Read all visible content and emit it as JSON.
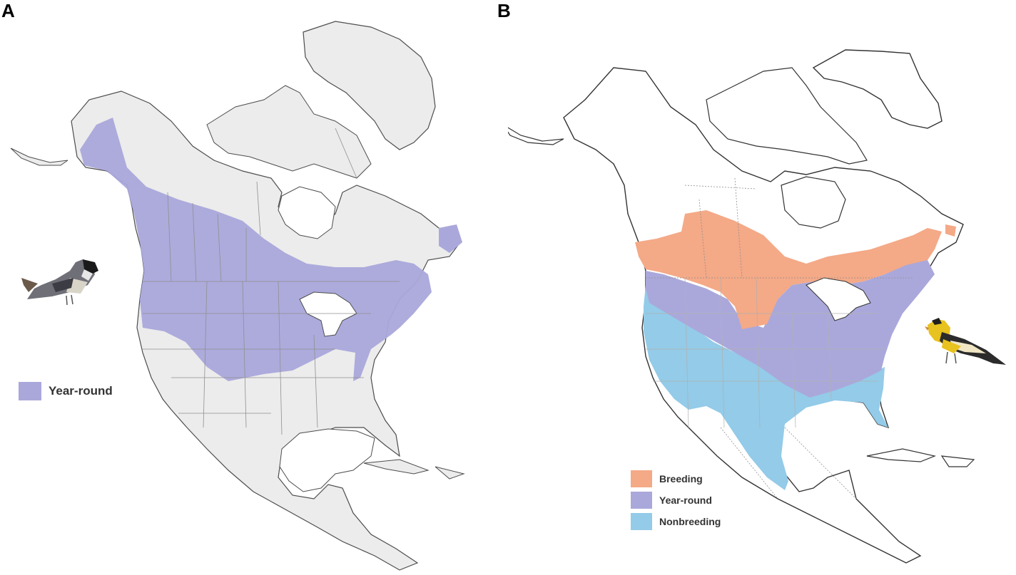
{
  "panels": [
    {
      "letter": "A",
      "legend": [
        {
          "label": "Year-round",
          "color": "#aaa8db"
        }
      ],
      "bird_icon": "chickadee-photo"
    },
    {
      "letter": "B",
      "legend": [
        {
          "label": "Breeding",
          "color": "#f4a987"
        },
        {
          "label": "Year-round",
          "color": "#aaa8db"
        },
        {
          "label": "Nonbreeding",
          "color": "#93cbe8"
        }
      ],
      "bird_icon": "goldfinch-photo"
    }
  ],
  "colors": {
    "land_a": "#ececec",
    "coast": "#4d4d4d",
    "borders": "#9a9a9a",
    "water": "#ffffff"
  }
}
